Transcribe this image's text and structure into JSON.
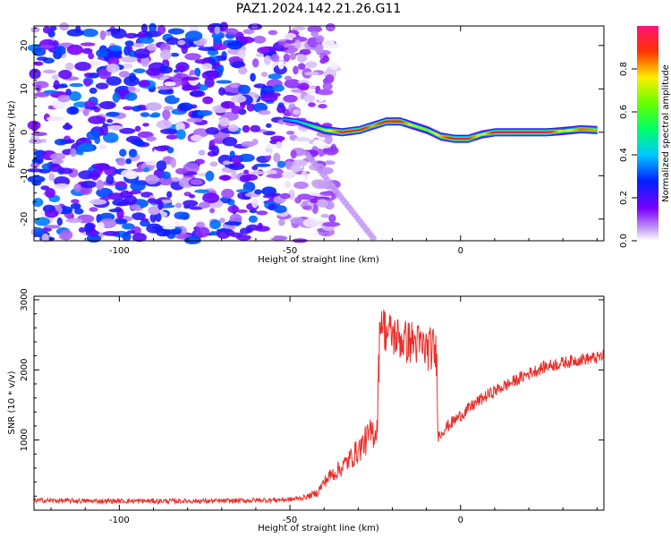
{
  "title": "PAZ1.2024.142.21.26.G11",
  "colors": {
    "snr_line": "#e8302b",
    "axis": "#000000"
  },
  "chart_data": [
    {
      "type": "heatmap",
      "title": "PAZ1.2024.142.21.26.G11",
      "xlabel": "Height of straight line (km)",
      "ylabel": "Frequency (Hz)",
      "xlim": [
        -125,
        42
      ],
      "ylim": [
        -25,
        24.5
      ],
      "xticks": [
        -100,
        -50,
        0
      ],
      "yticks": [
        -20,
        -10,
        0,
        10,
        20
      ],
      "colorbar": {
        "label": "Normalized spectral amplitude",
        "range": [
          0,
          1
        ],
        "ticks": [
          "0.0",
          "0.2",
          "0.4",
          "0.6",
          "0.8"
        ],
        "colormap": "gist_rainbow_r"
      },
      "ridge": {
        "x": [
          -52,
          -48,
          -44,
          -40,
          -35,
          -30,
          -26,
          -22,
          -18,
          -14,
          -10,
          -6,
          -2,
          2,
          6,
          10,
          15,
          20,
          25,
          30,
          35,
          40
        ],
        "y": [
          3,
          2.5,
          1.5,
          0.5,
          0,
          0.5,
          1.5,
          2.5,
          2.5,
          1.5,
          0.5,
          -1,
          -1.5,
          -1.5,
          -0.5,
          0,
          0,
          0,
          0,
          0.3,
          0.7,
          0.5
        ],
        "amplitude": [
          0.35,
          0.4,
          0.55,
          0.7,
          0.9,
          0.95,
          0.8,
          0.95,
          0.9,
          0.7,
          0.65,
          0.8,
          0.95,
          0.9,
          0.7,
          0.95,
          0.95,
          0.98,
          0.95,
          0.7,
          0.85,
          0.8
        ]
      },
      "noise_region_x": [
        -125,
        -42
      ],
      "noise_amplitude_max": 0.35
    },
    {
      "type": "line",
      "xlabel": "Height of straight line (km)",
      "ylabel": "SNR (10 * v/v)",
      "xlim": [
        -125,
        42
      ],
      "ylim": [
        0,
        3050
      ],
      "xticks": [
        -100,
        -50,
        0
      ],
      "yticks": [
        1000,
        2000,
        3000
      ],
      "series": [
        {
          "x": [
            -125,
            -110,
            -100,
            -90,
            -80,
            -70,
            -60,
            -50,
            -45,
            -42,
            -40,
            -38,
            -35,
            -32,
            -30,
            -28,
            -26,
            -24.5,
            -23.5,
            -22,
            -20,
            -18,
            -16,
            -14,
            -12,
            -10,
            -8,
            -7,
            -6.5,
            -5,
            0,
            5,
            10,
            15,
            20,
            25,
            30,
            35,
            40,
            42
          ],
          "y": [
            140,
            130,
            130,
            130,
            130,
            130,
            140,
            150,
            190,
            250,
            400,
            500,
            600,
            750,
            850,
            980,
            1100,
            1150,
            2800,
            2550,
            2500,
            2450,
            2400,
            2400,
            2350,
            2300,
            2300,
            2200,
            1050,
            1150,
            1350,
            1550,
            1700,
            1820,
            1950,
            2050,
            2100,
            2150,
            2170,
            2200
          ]
        }
      ]
    }
  ]
}
